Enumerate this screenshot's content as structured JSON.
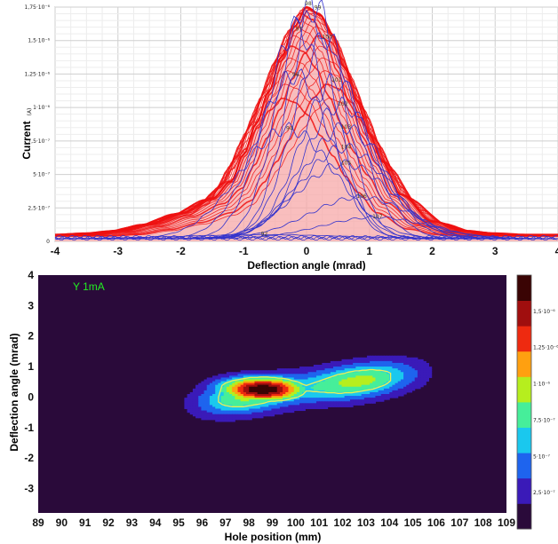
{
  "colors": {
    "scan_curve": "#ee1111",
    "scan_fill": "#f7a8a8",
    "sample_curve": "#3333cc",
    "map_background": "#2a0a3a"
  },
  "chart_data": [
    {
      "type": "line",
      "title": "",
      "xlabel": "Deflection angle (mrad)",
      "ylabel": "Current",
      "ylabel_unit": "(A)",
      "xlim": [
        -4,
        4
      ],
      "ylim": [
        0,
        1.75e-06
      ],
      "x_ticks": [
        "-4",
        "-3",
        "-2",
        "-1",
        "0",
        "1",
        "2",
        "3",
        "4"
      ],
      "y_ticks": [
        {
          "value": 0,
          "label": "0"
        },
        {
          "value": 2.5e-07,
          "label": "2,5·10⁻⁷"
        },
        {
          "value": 5e-07,
          "label": "5·10⁻⁷"
        },
        {
          "value": 7.5e-07,
          "label": "7,5·10⁻⁷"
        },
        {
          "value": 1e-06,
          "label": "1·10⁻⁶"
        },
        {
          "value": 1.25e-06,
          "label": "1,25·10⁻⁶"
        },
        {
          "value": 1.5e-06,
          "label": "1,5·10⁻⁶"
        },
        {
          "value": 1.75e-06,
          "label": "1,75·10⁻⁶"
        }
      ],
      "grid": true,
      "envelope": {
        "x": [
          -4,
          -3.5,
          -3,
          -2.5,
          -2,
          -1.5,
          -1.2,
          -1,
          -0.8,
          -0.6,
          -0.4,
          -0.2,
          0,
          0.2,
          0.4,
          0.6,
          0.8,
          1,
          1.2,
          1.5,
          2,
          2.5,
          3,
          3.5,
          4
        ],
        "y": [
          5e-08,
          6e-08,
          8e-08,
          1.3e-07,
          2.1e-07,
          3.2e-07,
          4.5e-07,
          6.5e-07,
          8.8e-07,
          1.12e-06,
          1.38e-06,
          1.6e-06,
          1.75e-06,
          1.7e-06,
          1.55e-06,
          1.3e-06,
          1.05e-06,
          8e-07,
          6e-07,
          3.5e-07,
          1.5e-07,
          8e-08,
          6e-08,
          5e-08,
          5e-08
        ]
      },
      "sample_curves": [
        {
          "label": "92",
          "peak_x": -0.7,
          "peak_y": 3e-08,
          "width": 1.3
        },
        {
          "label": "94",
          "peak_x": -0.3,
          "peak_y": 8.2e-07,
          "width": 0.75
        },
        {
          "label": "96",
          "peak_x": -0.2,
          "peak_y": 1.22e-06,
          "width": 0.6
        },
        {
          "label": "97",
          "peak_x": -0.15,
          "peak_y": 1.56e-06,
          "width": 0.5
        },
        {
          "label": "98",
          "peak_x": 0.0,
          "peak_y": 1.75e-06,
          "width": 0.45
        },
        {
          "label": "99",
          "peak_x": 0.15,
          "peak_y": 1.72e-06,
          "width": 0.45
        },
        {
          "label": "100",
          "peak_x": 0.3,
          "peak_y": 1.5e-06,
          "width": 0.5
        },
        {
          "label": "101",
          "peak_x": 0.45,
          "peak_y": 1.18e-06,
          "width": 0.55
        },
        {
          "label": "102",
          "peak_x": 0.55,
          "peak_y": 1e-06,
          "width": 0.6
        },
        {
          "label": "103",
          "peak_x": 0.6,
          "peak_y": 8.3e-07,
          "width": 0.65
        },
        {
          "label": "104",
          "peak_x": 0.6,
          "peak_y": 6.8e-07,
          "width": 0.7
        },
        {
          "label": "105",
          "peak_x": 0.6,
          "peak_y": 5.6e-07,
          "width": 0.75
        },
        {
          "label": "106",
          "peak_x": 0.85,
          "peak_y": 3.1e-07,
          "width": 0.8
        },
        {
          "label": "107",
          "peak_x": 1.1,
          "peak_y": 1.6e-07,
          "width": 0.85
        }
      ]
    },
    {
      "type": "heatmap",
      "title": "",
      "annotation": "Y 1mA",
      "xlabel": "Hole position (mm)",
      "ylabel": "Deflection angle (mrad)",
      "xlim": [
        89,
        109
      ],
      "ylim": [
        -3.8,
        4
      ],
      "x_ticks": [
        "89",
        "90",
        "91",
        "92",
        "93",
        "94",
        "95",
        "96",
        "97",
        "98",
        "99",
        "100",
        "101",
        "102",
        "103",
        "104",
        "105",
        "106",
        "107",
        "108",
        "109"
      ],
      "y_ticks": [
        "4",
        "3",
        "2",
        "1",
        "0",
        "-1",
        "-2",
        "-3"
      ],
      "colorbar": {
        "levels": [
          {
            "color": "#2a0a3a"
          },
          {
            "color": "#3a1ab8"
          },
          {
            "color": "#1e64ee"
          },
          {
            "color": "#1ac8ee"
          },
          {
            "color": "#46ee9a"
          },
          {
            "color": "#b6ee1e"
          },
          {
            "color": "#ffa010"
          },
          {
            "color": "#ee2a10"
          },
          {
            "color": "#a00e0e"
          },
          {
            "color": "#3a0404"
          }
        ],
        "tick_labels": [
          {
            "value": 2.5e-07,
            "label": "2,5·10⁻⁷"
          },
          {
            "value": 5e-07,
            "label": "5·10⁻⁷"
          },
          {
            "value": 7.5e-07,
            "label": "7,5·10⁻⁷"
          },
          {
            "value": 1e-06,
            "label": "1·10⁻⁶"
          },
          {
            "value": 1.25e-06,
            "label": "1,25·10⁻⁶"
          },
          {
            "value": 1.5e-06,
            "label": "1,5·10⁻⁶"
          }
        ],
        "max": 1.75e-06
      },
      "beam": {
        "core_x": 98.6,
        "core_y": 0.25,
        "tail_x": 103.5,
        "tail_y": 0.75,
        "peak": 1.75e-06,
        "highlight_contour_color": "#eeee55"
      }
    }
  ]
}
